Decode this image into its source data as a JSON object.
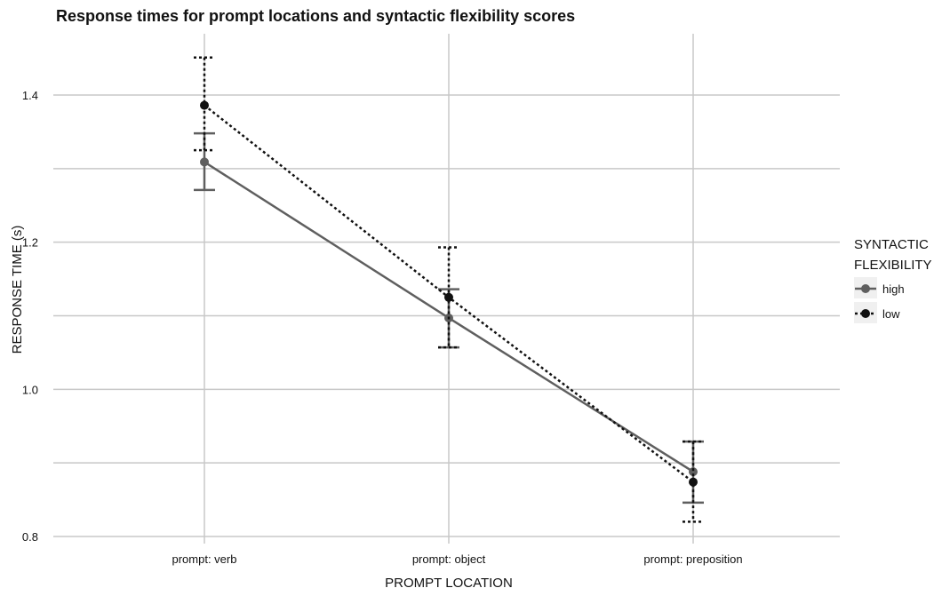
{
  "chart_data": {
    "type": "line",
    "title": "Response times for prompt locations and syntactic flexibility scores",
    "xlabel": "PROMPT LOCATION",
    "ylabel": "RESPONSE TIME (s)",
    "categories": [
      "prompt: verb",
      "prompt: object",
      "prompt: preposition"
    ],
    "ylim": [
      0.79,
      1.48
    ],
    "y_ticks": [
      0.8,
      1.0,
      1.2,
      1.4
    ],
    "y_tick_labels": [
      "0.8",
      "1.0",
      "1.2",
      "1.4"
    ],
    "grid": true,
    "legend": {
      "title_lines": [
        "SYNTACTIC",
        "FLEXIBILITY"
      ],
      "position": "right"
    },
    "series": [
      {
        "name": "high",
        "color": "#5f5f5f",
        "line_style": "solid",
        "values": [
          1.309,
          1.097,
          0.888
        ],
        "error_low": [
          1.271,
          1.057,
          0.846
        ],
        "error_high": [
          1.348,
          1.136,
          0.929
        ]
      },
      {
        "name": "low",
        "color": "#111111",
        "line_style": "dotted",
        "values": [
          1.386,
          1.125,
          0.874
        ],
        "error_low": [
          1.325,
          1.057,
          0.82
        ],
        "error_high": [
          1.451,
          1.193,
          0.929
        ]
      }
    ]
  }
}
